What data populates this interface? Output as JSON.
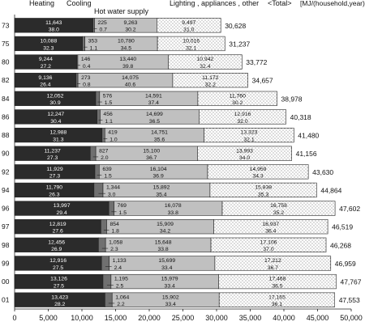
{
  "chart_data": {
    "type": "bar",
    "orientation": "horizontal",
    "stacked": true,
    "header": {
      "heating": "Heating",
      "cooling": "Cooling",
      "hot_water": "Hot water supply",
      "lighting": "Lighting , appliances , other",
      "total": "<Total>",
      "unit": "[MJ/(household,year)]"
    },
    "categories": [
      "73",
      "75",
      "80",
      "82",
      "84",
      "86",
      "88",
      "90",
      "92",
      "94",
      "96",
      "97",
      "98",
      "99",
      "00",
      "01"
    ],
    "series": [
      {
        "name": "Heating",
        "color": "#2b2b2b",
        "values": [
          11643,
          10088,
          9244,
          9136,
          12052,
          12247,
          12988,
          11237,
          11929,
          11790,
          13997,
          12819,
          12456,
          12916,
          13126,
          13423
        ],
        "shares": [
          "38.0",
          "32.3",
          "27.2",
          "26.4",
          "30.9",
          "30.4",
          "31.3",
          "27.3",
          "27.3",
          "26.3",
          "29.4",
          "27.6",
          "26.9",
          "27.5",
          "27.5",
          "28.2"
        ]
      },
      {
        "name": "Cooling",
        "color": "#707070",
        "values": [
          225,
          353,
          146,
          273,
          576,
          456,
          419,
          827,
          639,
          1344,
          769,
          854,
          1058,
          1133,
          1195,
          1064
        ],
        "shares": [
          "0.7",
          "1.1",
          "0.4",
          "0.8",
          "1.5",
          "1.1",
          "1.0",
          "2.0",
          "1.5",
          "3.0",
          "1.5",
          "1.8",
          "2.3",
          "2.4",
          "2.5",
          "2.2"
        ]
      },
      {
        "name": "Hot water supply",
        "color": "#c0c0c0",
        "values": [
          9263,
          10780,
          13440,
          14075,
          14591,
          14699,
          14751,
          15100,
          16104,
          15892,
          16078,
          15909,
          15648,
          15699,
          15979,
          15902
        ],
        "shares": [
          "30.2",
          "34.5",
          "39.8",
          "40.6",
          "37.4",
          "36.5",
          "35.6",
          "36.7",
          "36.9",
          "35.4",
          "33.8",
          "34.2",
          "33.8",
          "33.4",
          "33.4",
          "33.4"
        ]
      },
      {
        "name": "Lighting , appliances , other",
        "color": "#ffffff",
        "values": [
          9497,
          10016,
          10942,
          11172,
          11760,
          12916,
          13323,
          13993,
          14959,
          15838,
          16758,
          16937,
          17106,
          17212,
          17468,
          17165
        ],
        "shares": [
          "31.0",
          "32.1",
          "32.4",
          "32.2",
          "30.2",
          "32.0",
          "32.1",
          "34.0",
          "34.3",
          "35.3",
          "35.2",
          "36.4",
          "37.0",
          "36.7",
          "36.5",
          "36.1"
        ]
      }
    ],
    "totals": [
      "30,628",
      "31,237",
      "33,772",
      "34,657",
      "38,978",
      "40,318",
      "41,480",
      "41,156",
      "43,630",
      "44,864",
      "47,602",
      "46,519",
      "46,268",
      "46,959",
      "47,767",
      "47,553"
    ],
    "xlim": [
      0,
      50000
    ],
    "xticks": [
      "0",
      "5,000",
      "10,000",
      "15,000",
      "20,000",
      "25,000",
      "30,000",
      "35,000",
      "40,000",
      "45,000",
      "50,000"
    ],
    "xtick_values": [
      0,
      5000,
      10000,
      15000,
      20000,
      25000,
      30000,
      35000,
      40000,
      45000,
      50000
    ],
    "grid": false,
    "legend": "top"
  }
}
